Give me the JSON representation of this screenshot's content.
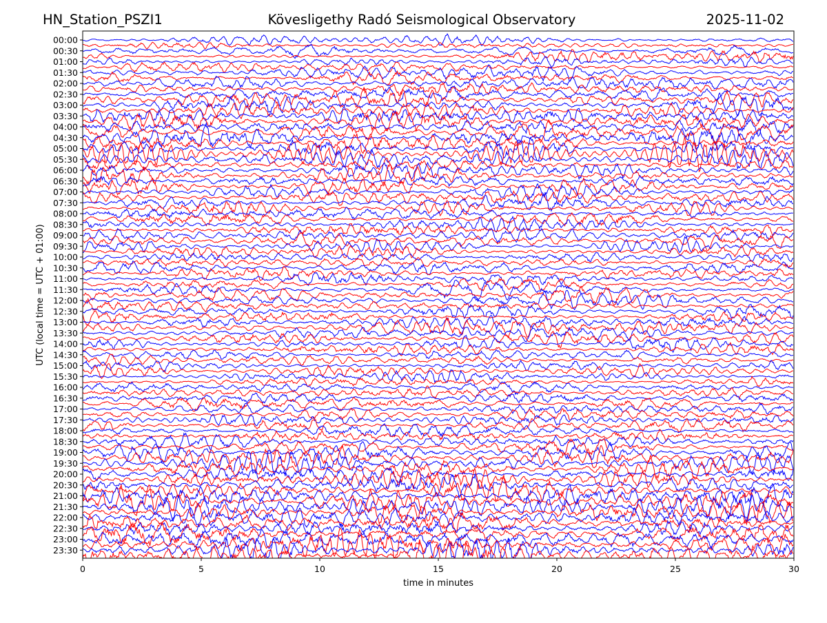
{
  "header": {
    "station": "HN_Station_PSZI1",
    "observatory": "Kövesligethy Radó Seismological Observatory",
    "date": "2025-11-02"
  },
  "chart_data": {
    "type": "line",
    "title": "Kövesligethy Radó Seismological Observatory",
    "xlabel": "time in minutes",
    "ylabel": "UTC (local time = UTC + 01:00)",
    "xlim": [
      0,
      30
    ],
    "x_ticks": [
      0,
      5,
      10,
      15,
      20,
      25,
      30
    ],
    "y_tick_labels": [
      "00:00",
      "00:30",
      "01:00",
      "01:30",
      "02:00",
      "02:30",
      "03:00",
      "03:30",
      "04:00",
      "04:30",
      "05:00",
      "05:30",
      "06:00",
      "06:30",
      "07:00",
      "07:30",
      "08:00",
      "08:30",
      "09:00",
      "09:30",
      "10:00",
      "10:30",
      "11:00",
      "11:30",
      "12:00",
      "12:30",
      "13:00",
      "13:30",
      "14:00",
      "14:30",
      "15:00",
      "15:30",
      "16:00",
      "16:30",
      "17:00",
      "17:30",
      "18:00",
      "18:30",
      "19:00",
      "19:30",
      "20:00",
      "20:30",
      "21:00",
      "21:30",
      "22:00",
      "22:30",
      "23:00",
      "23:30"
    ],
    "trace_colors": [
      "#0000ff",
      "#ff0000"
    ],
    "traces_per_row_interval": 2,
    "relative_amplitude": [
      0.5,
      0.7,
      0.6,
      0.9,
      0.9,
      1.2,
      1.1,
      1.3,
      1.2,
      1.3,
      1.2,
      1.1,
      1.1,
      1.0,
      0.9,
      0.9,
      0.9,
      0.9,
      0.9,
      0.8,
      0.8,
      0.8,
      0.8,
      0.9,
      0.9,
      0.9,
      1.0,
      0.9,
      0.8,
      0.7,
      0.8,
      0.7,
      0.8,
      0.9,
      0.8,
      0.9,
      0.9,
      1.0,
      1.2,
      1.2,
      1.3,
      1.3,
      1.4,
      1.5,
      1.5,
      1.5,
      1.6,
      1.7
    ],
    "grid": false
  }
}
